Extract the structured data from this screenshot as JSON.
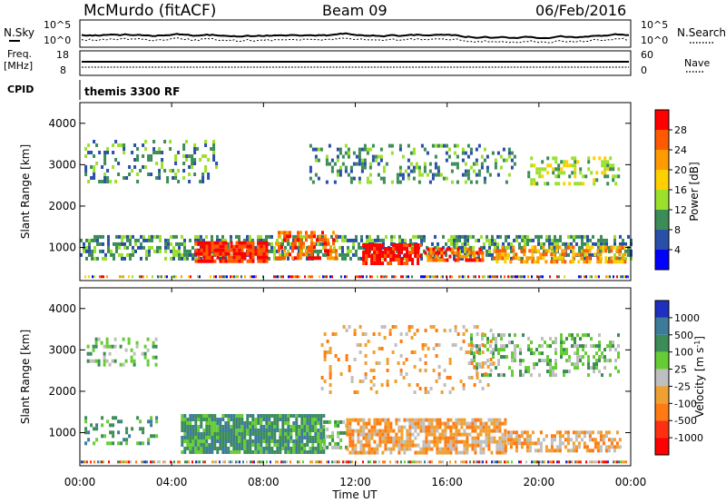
{
  "header": {
    "station": "McMurdo (fitACF)",
    "beam": "Beam 09",
    "date": "06/Feb/2016"
  },
  "ancillary": {
    "nsky_label": "N.Sky",
    "nsearch_label": "N.Search",
    "freq_label_1": "Freq.",
    "freq_label_2": "[MHz]",
    "nave_label": "Nave",
    "cpid_label": "CPID",
    "noise_ticks": [
      "10^5",
      "10^0"
    ],
    "freq_ticks": [
      "18",
      "8"
    ],
    "nave_ticks": [
      "60",
      "0"
    ],
    "cpid_text": "themis 3300 RF"
  },
  "axes": {
    "x_ticks": [
      "00:00",
      "04:00",
      "08:00",
      "12:00",
      "16:00",
      "20:00",
      "00:00"
    ],
    "x_label": "Time UT",
    "y_ticks": [
      "4000",
      "3000",
      "2000",
      "1000"
    ],
    "y_label": "Slant Range [km]"
  },
  "power_scale": {
    "label": "Power [dB]",
    "ticks": [
      "28",
      "24",
      "20",
      "16",
      "12",
      "8",
      "4"
    ],
    "colors": [
      "#ff0000",
      "#ff5a00",
      "#ff9a00",
      "#ffd000",
      "#9be02a",
      "#3c8c58",
      "#2a4fa8",
      "#0000ff"
    ]
  },
  "velocity_scale": {
    "label": "Velocity [m s",
    "label_sup": "-1",
    "label_end": "]",
    "ticks": [
      "1000",
      "500",
      "100",
      "25",
      "-25",
      "-100",
      "-500",
      "-1000"
    ],
    "colors": [
      "#1f2fbf",
      "#3c7c9a",
      "#3c8c58",
      "#66cc33",
      "#bfbfbf",
      "#f0a030",
      "#ff7a10",
      "#ff3010",
      "#ff0000"
    ]
  },
  "chart_data": [
    {
      "type": "heatmap",
      "title": "Power",
      "x_range_hours": [
        0,
        24
      ],
      "y_range_km": [
        200,
        4500
      ],
      "grid": false,
      "bands": [
        {
          "t0": 0.0,
          "t1": 24.0,
          "r0": 700,
          "r1": 1300,
          "level": "8",
          "density": 0.55
        },
        {
          "t0": 5.0,
          "t1": 8.2,
          "r0": 650,
          "r1": 1150,
          "level": "28",
          "density": 0.85
        },
        {
          "t0": 8.5,
          "t1": 11.2,
          "r0": 700,
          "r1": 1400,
          "level": "24",
          "density": 0.6
        },
        {
          "t0": 12.3,
          "t1": 14.8,
          "r0": 600,
          "r1": 1100,
          "level": "28",
          "density": 0.75
        },
        {
          "t0": 15.0,
          "t1": 17.5,
          "r0": 650,
          "r1": 1000,
          "level": "24",
          "density": 0.6
        },
        {
          "t0": 18.0,
          "t1": 23.8,
          "r0": 650,
          "r1": 1050,
          "level": "20",
          "density": 0.55
        },
        {
          "t0": 10.0,
          "t1": 19.0,
          "r0": 2600,
          "r1": 3500,
          "level": "8",
          "density": 0.25
        },
        {
          "t0": 0.2,
          "t1": 6.0,
          "r0": 2600,
          "r1": 3600,
          "level": "8",
          "density": 0.25
        },
        {
          "t0": 19.5,
          "t1": 23.5,
          "r0": 2500,
          "r1": 3200,
          "level": "12",
          "density": 0.35
        }
      ]
    },
    {
      "type": "heatmap",
      "title": "Velocity",
      "x_range_hours": [
        0,
        24
      ],
      "y_range_km": [
        200,
        4500
      ],
      "grid": false,
      "bands": [
        {
          "t0": 4.4,
          "t1": 10.6,
          "r0": 550,
          "r1": 1450,
          "level": "100",
          "density": 0.9
        },
        {
          "t0": 10.6,
          "t1": 11.6,
          "r0": 600,
          "r1": 1300,
          "level": "25",
          "density": 0.5
        },
        {
          "t0": 11.6,
          "t1": 18.5,
          "r0": 500,
          "r1": 1350,
          "level": "-100",
          "density": 0.75
        },
        {
          "t0": 18.5,
          "t1": 23.6,
          "r0": 550,
          "r1": 1050,
          "level": "-100",
          "density": 0.55
        },
        {
          "t0": 0.2,
          "t1": 3.5,
          "r0": 700,
          "r1": 1400,
          "level": "100",
          "density": 0.25
        },
        {
          "t0": 0.3,
          "t1": 3.5,
          "r0": 2600,
          "r1": 3300,
          "level": "25",
          "density": 0.3
        },
        {
          "t0": 17.0,
          "t1": 23.5,
          "r0": 2400,
          "r1": 3400,
          "level": "25",
          "density": 0.35
        },
        {
          "t0": 10.5,
          "t1": 18.0,
          "r0": 2000,
          "r1": 3600,
          "level": "-100",
          "density": 0.15
        }
      ]
    }
  ]
}
